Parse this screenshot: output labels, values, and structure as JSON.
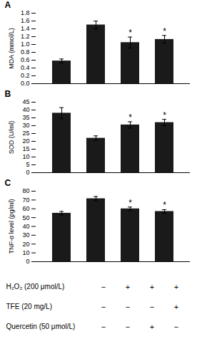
{
  "chart_data": [
    {
      "type": "bar",
      "title": "A",
      "ylabel": "MDA (mmol/L)",
      "categories": [
        null,
        null,
        null,
        null
      ],
      "values": [
        0.58,
        1.5,
        1.05,
        1.13
      ],
      "errors": [
        0.05,
        0.1,
        0.14,
        0.1
      ],
      "annotations": [
        null,
        null,
        "*",
        "*"
      ],
      "color": "#1a1a1a",
      "ylim": [
        0,
        1.8
      ],
      "yticks": [
        {
          "value": 0,
          "label": "0.0"
        },
        0.2,
        0.4,
        0.6,
        0.8,
        {
          "value": 1.0,
          "label": "1.0"
        },
        1.2,
        1.4,
        1.6,
        1.8
      ],
      "tick_labels": "y",
      "grid": false
    },
    {
      "type": "bar",
      "title": "B",
      "ylabel": "SOD (U/ml)",
      "categories": [
        null,
        null,
        null,
        null
      ],
      "values": [
        38.0,
        22.0,
        30.5,
        32.0
      ],
      "errors": [
        3.5,
        1.5,
        2.0,
        2.0
      ],
      "annotations": [
        null,
        null,
        "*",
        "*"
      ],
      "color": "#1a1a1a",
      "ylim": [
        0,
        45
      ],
      "yticks": [
        0,
        5,
        10,
        15,
        20,
        25,
        30,
        35,
        40,
        45
      ],
      "tick_labels": "y",
      "grid": false
    },
    {
      "type": "bar",
      "title": "C",
      "ylabel": "TNF-α level (pg/ml)",
      "categories": [
        null,
        null,
        null,
        null
      ],
      "values": [
        55.0,
        71.5,
        60.0,
        57.0
      ],
      "errors": [
        2.0,
        2.5,
        2.0,
        2.0
      ],
      "annotations": [
        null,
        null,
        "*",
        "*"
      ],
      "color": "#1a1a1a",
      "ylim": [
        0,
        80
      ],
      "yticks": [
        0,
        10,
        20,
        30,
        40,
        50,
        60,
        70,
        80
      ],
      "tick_labels": "y",
      "grid": false,
      "table": [
        [
          "H₂O₂ (200 μmol/L)",
          "−",
          "+",
          "+",
          "+"
        ],
        [
          "TFE (20 mg/L)",
          "−",
          "−",
          "−",
          "+"
        ],
        [
          "Quercetin (50 μmol/L)",
          "−",
          "−",
          "+",
          "−"
        ]
      ]
    }
  ]
}
